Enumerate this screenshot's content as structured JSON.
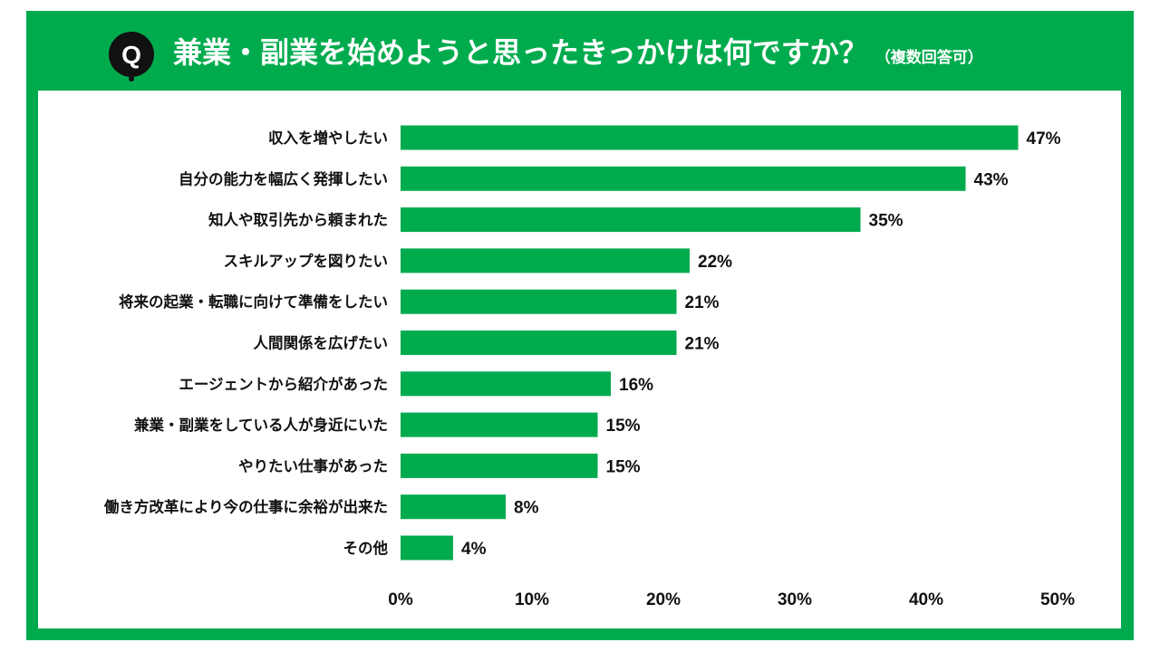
{
  "header": {
    "badge_letter": "Q",
    "title": "兼業・副業を始めようと思ったきっかけは何ですか？",
    "note": "（複数回答可）"
  },
  "colors": {
    "frame": "#00ab4e",
    "bar": "#00ab4e",
    "badge": "#111111",
    "text": "#111111"
  },
  "chart_data": {
    "type": "bar",
    "orientation": "horizontal",
    "title": "兼業・副業を始めようと思ったきっかけは何ですか？（複数回答可）",
    "categories": [
      "収入を増やしたい",
      "自分の能力を幅広く発揮したい",
      "知人や取引先から頼まれた",
      "スキルアップを図りたい",
      "将来の起業・転職に向けて準備をしたい",
      "人間関係を広げたい",
      "エージェントから紹介があった",
      "兼業・副業をしている人が身近にいた",
      "やりたい仕事があった",
      "働き方改革により今の仕事に余裕が出来た",
      "その他"
    ],
    "values": [
      47,
      43,
      35,
      22,
      21,
      21,
      16,
      15,
      15,
      8,
      4
    ],
    "value_labels": [
      "47%",
      "43%",
      "35%",
      "22%",
      "21%",
      "21%",
      "16%",
      "15%",
      "15%",
      "8%",
      "4%"
    ],
    "xlim": [
      0,
      50
    ],
    "x_ticks": [
      0,
      10,
      20,
      30,
      40,
      50
    ],
    "x_tick_labels": [
      "0%",
      "10%",
      "20%",
      "30%",
      "40%",
      "50%"
    ],
    "grid": false,
    "legend": "none"
  }
}
